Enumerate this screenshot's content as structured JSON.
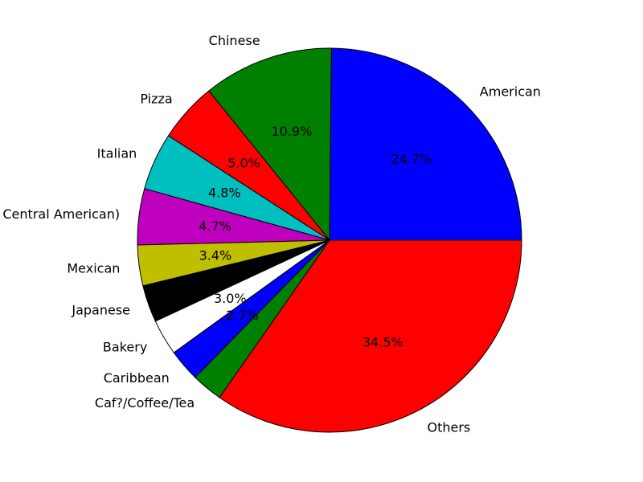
{
  "chart_data": {
    "type": "pie",
    "title": "",
    "start_angle_deg": 0,
    "direction": "counterclockwise",
    "slices": [
      {
        "label": "American",
        "value": 24.7,
        "pct_label": "24.7%",
        "color": "#0000ff"
      },
      {
        "label": "Chinese",
        "value": 10.9,
        "pct_label": "10.9%",
        "color": "#008000"
      },
      {
        "label": "Pizza",
        "value": 5.0,
        "pct_label": "5.0%",
        "color": "#ff0000"
      },
      {
        "label": "Italian",
        "value": 4.8,
        "pct_label": "4.8%",
        "color": "#00bfbf"
      },
      {
        "label": "Latin (Cuban, Dominican, Puerto Rican, South & Central American)",
        "value": 4.7,
        "pct_label": "4.7%",
        "color": "#bf00bf"
      },
      {
        "label": "Mexican",
        "value": 3.4,
        "pct_label": "3.4%",
        "color": "#bfbf00"
      },
      {
        "label": "Japanese",
        "value": 3.1,
        "pct_label": "3.1%",
        "color": "#000000"
      },
      {
        "label": "Bakery",
        "value": 3.0,
        "pct_label": "3.0%",
        "color": "#ffffff"
      },
      {
        "label": "Caribbean",
        "value": 2.7,
        "pct_label": "2.7%",
        "color": "#0000ff"
      },
      {
        "label": "Caf?/Coffee/Tea",
        "value": 2.6,
        "pct_label": "",
        "color": "#008000"
      },
      {
        "label": "Others",
        "value": 34.5,
        "pct_label": "34.5%",
        "color": "#ff0000"
      }
    ]
  }
}
